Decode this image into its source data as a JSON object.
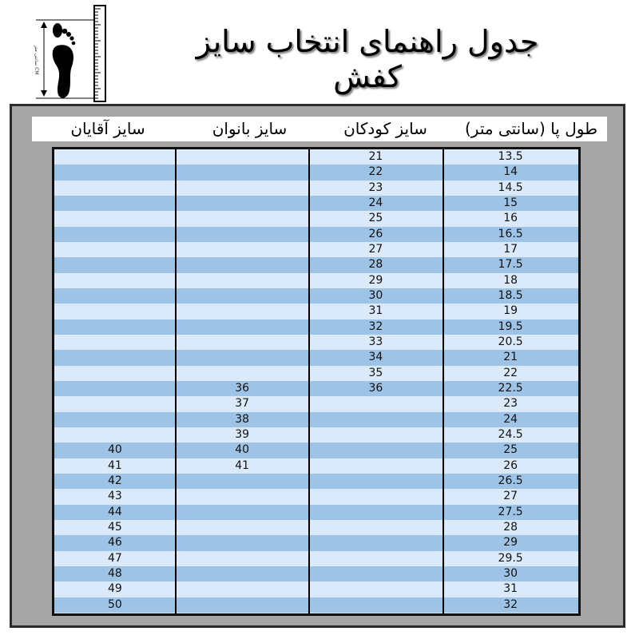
{
  "title": "جدول راهنمای انتخاب سایز کفش",
  "logo": {
    "ruler_label": "سانتی متر CM",
    "icon": "foot-ruler-icon"
  },
  "headers": [
    "سایز آقایان",
    "سایز بانوان",
    "سایز کودکان",
    "طول پا (سانتی متر)"
  ],
  "colors": {
    "stripe_light": "#dbeafb",
    "stripe_dark": "#9dc3e6",
    "frame": "#a6a6a6"
  },
  "rows": [
    [
      "",
      "",
      "21",
      "13.5"
    ],
    [
      "",
      "",
      "22",
      "14"
    ],
    [
      "",
      "",
      "23",
      "14.5"
    ],
    [
      "",
      "",
      "24",
      "15"
    ],
    [
      "",
      "",
      "25",
      "16"
    ],
    [
      "",
      "",
      "26",
      "16.5"
    ],
    [
      "",
      "",
      "27",
      "17"
    ],
    [
      "",
      "",
      "28",
      "17.5"
    ],
    [
      "",
      "",
      "29",
      "18"
    ],
    [
      "",
      "",
      "30",
      "18.5"
    ],
    [
      "",
      "",
      "31",
      "19"
    ],
    [
      "",
      "",
      "32",
      "19.5"
    ],
    [
      "",
      "",
      "33",
      "20.5"
    ],
    [
      "",
      "",
      "34",
      "21"
    ],
    [
      "",
      "",
      "35",
      "22"
    ],
    [
      "",
      "36",
      "36",
      "22.5"
    ],
    [
      "",
      "37",
      "",
      "23"
    ],
    [
      "",
      "38",
      "",
      "24"
    ],
    [
      "",
      "39",
      "",
      "24.5"
    ],
    [
      "40",
      "40",
      "",
      "25"
    ],
    [
      "41",
      "41",
      "",
      "26"
    ],
    [
      "42",
      "",
      "",
      "26.5"
    ],
    [
      "43",
      "",
      "",
      "27"
    ],
    [
      "44",
      "",
      "",
      "27.5"
    ],
    [
      "45",
      "",
      "",
      "28"
    ],
    [
      "46",
      "",
      "",
      "29"
    ],
    [
      "47",
      "",
      "",
      "29.5"
    ],
    [
      "48",
      "",
      "",
      "30"
    ],
    [
      "49",
      "",
      "",
      "31"
    ],
    [
      "50",
      "",
      "",
      "32"
    ]
  ]
}
